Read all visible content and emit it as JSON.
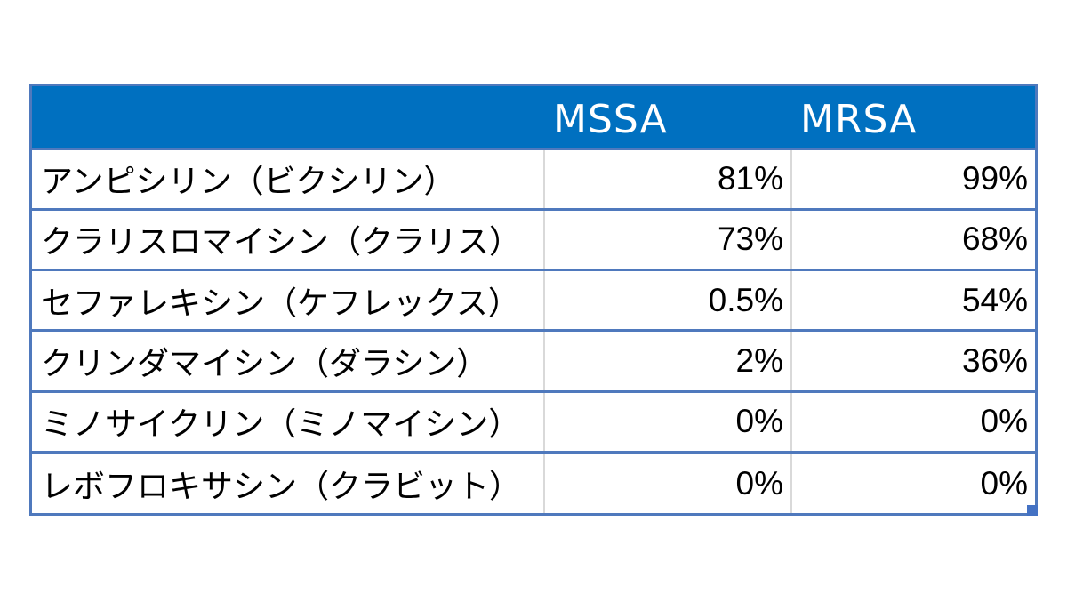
{
  "chart_data": {
    "type": "table",
    "columns": [
      "",
      "MSSA",
      "MRSA"
    ],
    "rows": [
      {
        "drug": "アンピシリン（ビクシリン）",
        "mssa": "81%",
        "mrsa": "99%"
      },
      {
        "drug": "クラリスロマイシン（クラリス）",
        "mssa": "73%",
        "mrsa": "68%"
      },
      {
        "drug": "セファレキシン（ケフレックス）",
        "mssa": "0.5%",
        "mrsa": "54%"
      },
      {
        "drug": "クリンダマイシン（ダラシン）",
        "mssa": "2%",
        "mrsa": "36%"
      },
      {
        "drug": "ミノサイクリン（ミノマイシン）",
        "mssa": "0%",
        "mrsa": "0%"
      },
      {
        "drug": "レボフロキサシン（クラビット）",
        "mssa": "0%",
        "mrsa": "0%"
      }
    ]
  },
  "colors": {
    "header_bg": "#0070c0",
    "header_text": "#ffffff",
    "grid_border": "#4f79bd",
    "inner_divider": "#d9d9d9"
  }
}
